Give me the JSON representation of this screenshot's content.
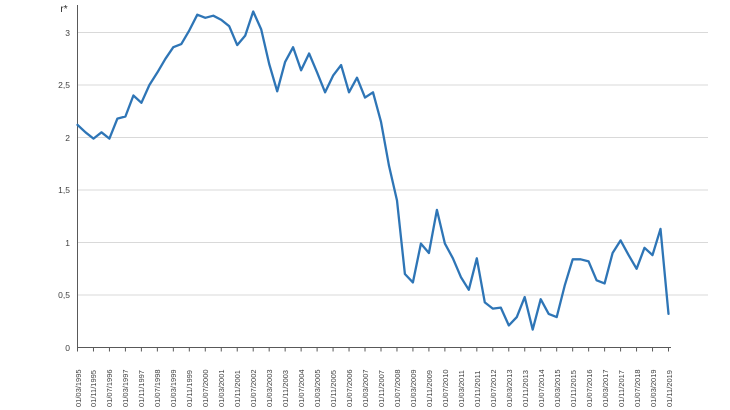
{
  "chart_data": {
    "type": "line",
    "title": "r*",
    "series_name": "r*",
    "legend": "none",
    "grid": "horizontal",
    "decimal_separator": ",",
    "colors": {
      "line": "#2e75b6",
      "gridline": "#d9d9d9",
      "axis": "#595959",
      "text": "#404040"
    },
    "ylim": [
      0,
      3.26
    ],
    "y_tick_values": [
      0,
      0.5,
      1,
      1.5,
      2,
      2.5,
      3
    ],
    "y_tick_labels": [
      "0",
      "0,5",
      "1",
      "1,5",
      "2",
      "2,5",
      "3"
    ],
    "x": [
      "01/03/1995",
      "01/07/1995",
      "01/11/1995",
      "01/03/1996",
      "01/07/1996",
      "01/11/1996",
      "01/03/1997",
      "01/07/1997",
      "01/11/1997",
      "01/03/1998",
      "01/07/1998",
      "01/11/1998",
      "01/03/1999",
      "01/07/1999",
      "01/11/1999",
      "01/03/2000",
      "01/07/2000",
      "01/11/2000",
      "01/03/2001",
      "01/07/2001",
      "01/11/2001",
      "01/03/2002",
      "01/07/2002",
      "01/11/2002",
      "01/03/2003",
      "01/07/2003",
      "01/11/2003",
      "01/03/2004",
      "01/07/2004",
      "01/11/2004",
      "01/03/2005",
      "01/07/2005",
      "01/11/2005",
      "01/03/2006",
      "01/07/2006",
      "01/11/2006",
      "01/03/2007",
      "01/07/2007",
      "01/11/2007",
      "01/03/2008",
      "01/07/2008",
      "01/11/2008",
      "01/03/2009",
      "01/07/2009",
      "01/11/2009",
      "01/03/2010",
      "01/07/2010",
      "01/11/2010",
      "01/03/2011",
      "01/07/2011",
      "01/11/2011",
      "01/03/2012",
      "01/07/2012",
      "01/11/2012",
      "01/03/2013",
      "01/07/2013",
      "01/11/2013",
      "01/03/2014",
      "01/07/2014",
      "01/11/2014",
      "01/03/2015",
      "01/07/2015",
      "01/11/2015",
      "01/03/2016",
      "01/07/2016",
      "01/11/2016",
      "01/03/2017",
      "01/07/2017",
      "01/11/2017",
      "01/03/2018",
      "01/07/2018",
      "01/11/2018",
      "01/03/2019",
      "01/07/2019",
      "01/11/2019"
    ],
    "x_tick_labels": [
      "01/03/1995",
      "01/11/1995",
      "01/07/1996",
      "01/03/1997",
      "01/11/1997",
      "01/07/1998",
      "01/03/1999",
      "01/11/1999",
      "01/07/2000",
      "01/03/2001",
      "01/11/2001",
      "01/07/2002",
      "01/03/2003",
      "01/11/2003",
      "01/07/2004",
      "01/03/2005",
      "01/11/2005",
      "01/07/2006",
      "01/03/2007",
      "01/11/2007",
      "01/07/2008",
      "01/03/2009",
      "01/11/2009",
      "01/07/2010",
      "01/03/2011",
      "01/11/2011",
      "01/07/2012",
      "01/03/2013",
      "01/11/2013",
      "01/07/2014",
      "01/03/2015",
      "01/11/2015",
      "01/07/2016",
      "01/03/2017",
      "01/11/2017",
      "01/07/2018",
      "01/03/2019",
      "01/11/2019"
    ],
    "values": [
      2.12,
      2.05,
      1.99,
      2.05,
      1.99,
      2.18,
      2.2,
      2.4,
      2.33,
      2.5,
      2.62,
      2.75,
      2.86,
      2.89,
      3.02,
      3.17,
      3.14,
      3.16,
      3.12,
      3.06,
      2.88,
      2.97,
      3.2,
      3.03,
      2.7,
      2.44,
      2.72,
      2.86,
      2.64,
      2.8,
      2.62,
      2.43,
      2.59,
      2.69,
      2.43,
      2.57,
      2.38,
      2.43,
      2.15,
      1.73,
      1.4,
      0.7,
      0.62,
      0.99,
      0.9,
      1.31,
      0.99,
      0.85,
      0.67,
      0.55,
      0.85,
      0.43,
      0.37,
      0.38,
      0.21,
      0.29,
      0.48,
      0.17,
      0.46,
      0.32,
      0.29,
      0.59,
      0.84,
      0.84,
      0.82,
      0.64,
      0.61,
      0.9,
      1.02,
      0.88,
      0.75,
      0.95,
      0.88,
      1.13,
      0.32
    ]
  }
}
